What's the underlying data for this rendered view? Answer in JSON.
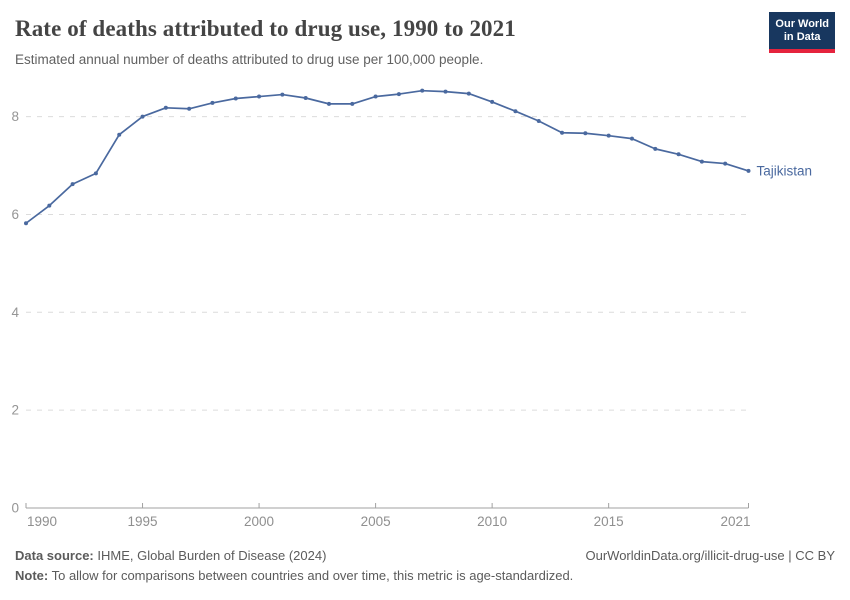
{
  "header": {
    "title": "Rate of deaths attributed to drug use, 1990 to 2021",
    "subtitle": "Estimated annual number of deaths attributed to drug use per 100,000 people.",
    "logo": {
      "line1": "Our World",
      "line2": "in Data",
      "bg_color": "#18375f",
      "accent_color": "#e5233d"
    }
  },
  "chart_data": {
    "type": "line",
    "title": "Rate of deaths attributed to drug use, 1990 to 2021",
    "xlabel": "",
    "ylabel": "",
    "xlim": [
      1990,
      2021
    ],
    "ylim": [
      0,
      8.8
    ],
    "x_ticks": [
      1990,
      1995,
      2000,
      2005,
      2010,
      2015,
      2021
    ],
    "y_ticks": [
      0,
      2,
      4,
      6,
      8
    ],
    "grid": "horizontal-dashed",
    "legend_position": "end-of-line-label",
    "colors": {
      "series": "#4a699f",
      "grid": "#dcdcdc",
      "axis": "#a1a1a1",
      "tick_text": "#959595"
    },
    "series": [
      {
        "name": "Tajikistan",
        "color": "#4a699f",
        "x": [
          1990,
          1991,
          1992,
          1993,
          1994,
          1995,
          1996,
          1997,
          1998,
          1999,
          2000,
          2001,
          2002,
          2003,
          2004,
          2005,
          2006,
          2007,
          2008,
          2009,
          2010,
          2011,
          2012,
          2013,
          2014,
          2015,
          2016,
          2017,
          2018,
          2019,
          2020,
          2021
        ],
        "values": [
          5.82,
          6.18,
          6.62,
          6.84,
          7.63,
          8.0,
          8.18,
          8.16,
          8.28,
          8.37,
          8.41,
          8.45,
          8.38,
          8.26,
          8.26,
          8.41,
          8.46,
          8.53,
          8.51,
          8.47,
          8.3,
          8.11,
          7.91,
          7.67,
          7.66,
          7.61,
          7.55,
          7.34,
          7.23,
          7.08,
          7.04,
          6.89
        ]
      }
    ]
  },
  "footer": {
    "source_label": "Data source:",
    "source_text": " IHME, Global Burden of Disease (2024)",
    "link": "OurWorldinData.org/illicit-drug-use | CC BY",
    "note_label": "Note:",
    "note_text": " To allow for comparisons between countries and over time, this metric is age-standardized."
  }
}
